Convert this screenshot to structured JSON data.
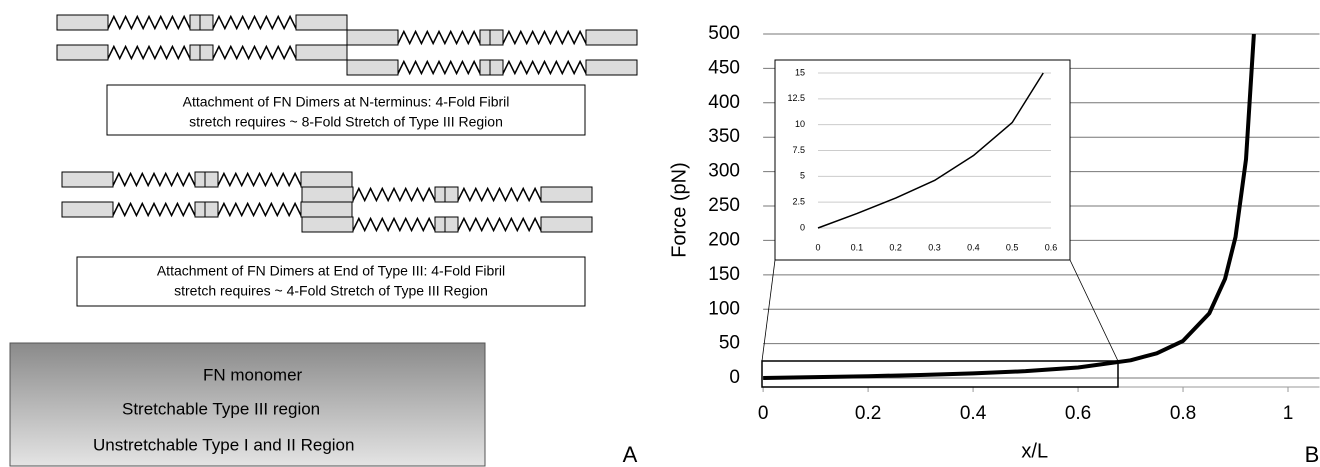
{
  "diagram": {
    "captions": [
      [
        "Attachment of FN Dimers at N-terminus: 4-Fold Fibril",
        "stretch requires ~ 8-Fold Stretch of Type III Region"
      ],
      [
        "Attachment of FN Dimers at End of Type III: 4-Fold Fibril",
        "stretch requires ~ 4-Fold Stretch of Type III Region"
      ]
    ],
    "legend": [
      "FN monomer",
      "Stretchable Type III region",
      "Unstretchable Type I and II Region"
    ]
  },
  "panel_labels": [
    "A",
    "B"
  ],
  "chart_data": [
    {
      "type": "line",
      "x_label": "x/L",
      "y_label": "Force (pN)",
      "x": [
        0,
        0.1,
        0.2,
        0.3,
        0.4,
        0.5,
        0.6,
        0.7,
        0.75,
        0.8,
        0.85,
        0.88,
        0.9,
        0.92,
        0.935
      ],
      "values": [
        0,
        1.3,
        2.7,
        4.5,
        6.8,
        10,
        15.3,
        25.8,
        36,
        54,
        94,
        144,
        205,
        318,
        500
      ],
      "color": "#000000",
      "line_width": 4,
      "xlim": [
        -0.025,
        1.06
      ],
      "xticks": [
        0,
        0.2,
        0.4,
        0.6,
        0.8,
        1
      ],
      "ylim": [
        -13,
        500
      ],
      "yticks": [
        0,
        50,
        100,
        150,
        200,
        250,
        300,
        350,
        400,
        450,
        500
      ],
      "grid": true
    },
    {
      "type": "line",
      "x": [
        0,
        0.1,
        0.2,
        0.3,
        0.4,
        0.5,
        0.58
      ],
      "values": [
        0,
        1.4,
        2.9,
        4.6,
        7,
        10.2,
        15
      ],
      "color": "#000000",
      "line_width": 1.5,
      "xlim": [
        0,
        0.6
      ],
      "xticks": [
        0,
        0.1,
        0.2,
        0.3,
        0.4,
        0.5,
        0.6
      ],
      "ylim": [
        0,
        15
      ],
      "yticks": [
        0,
        2.5,
        5,
        7.5,
        10,
        12.5,
        15
      ],
      "grid": true
    }
  ]
}
